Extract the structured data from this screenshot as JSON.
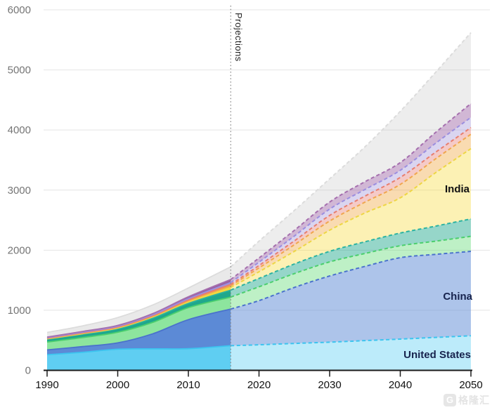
{
  "watermark": {
    "logo_letter": "G",
    "text": "格隆汇"
  },
  "chart_data": {
    "type": "area",
    "stacked": true,
    "title": "",
    "xlabel": "",
    "ylabel": "",
    "xlim": [
      1990,
      2050
    ],
    "ylim": [
      0,
      6000
    ],
    "grid": "horizontal",
    "legend_position": "none",
    "x_ticks": [
      1990,
      2000,
      2010,
      2020,
      2030,
      2040,
      2050
    ],
    "y_ticks": [
      0,
      1000,
      2000,
      3000,
      4000,
      5000,
      6000
    ],
    "projection_start": 2016,
    "projection_line_label": "Projections",
    "x": [
      1990,
      1995,
      2000,
      2005,
      2010,
      2016,
      2020,
      2025,
      2030,
      2035,
      2040,
      2045,
      2050
    ],
    "series": [
      {
        "id": "united-states",
        "label": "United States",
        "values": [
          260,
          300,
          352,
          358,
          360,
          410,
          425,
          448,
          469,
          495,
          520,
          548,
          575
        ],
        "color_hist": "#5fcef2",
        "color_proj": "rgba(95,208,244,0.42)",
        "stroke": "#3cc4ef"
      },
      {
        "id": "china",
        "label": "China",
        "values": [
          80,
          95,
          105,
          252,
          484,
          610,
          735,
          932,
          1101,
          1235,
          1355,
          1382,
          1405
        ],
        "color_hist": "#5c8ad6",
        "color_proj": "rgba(92,138,214,0.50)",
        "stroke": "#4a72cc"
      },
      {
        "id": "unlabeled-green",
        "label": "",
        "values": [
          130,
          150,
          176,
          190,
          199,
          199,
          230,
          230,
          235,
          215,
          199,
          220,
          250
        ],
        "color_hist": "#8de59e",
        "color_proj": "rgba(100,220,120,0.42)",
        "stroke": "#4ccf6e"
      },
      {
        "id": "unlabeled-teal",
        "label": "",
        "values": [
          47,
          55,
          59,
          70,
          70,
          117,
          140,
          160,
          176,
          195,
          211,
          250,
          290
        ],
        "color_hist": "#1fa88c",
        "color_proj": "rgba(31,168,140,0.47)",
        "stroke": "#2bb3a1"
      },
      {
        "id": "india",
        "label": "India",
        "values": [
          8,
          10,
          13,
          20,
          27,
          44,
          110,
          210,
          351,
          480,
          587,
          890,
          1170
        ],
        "color_hist": "#f6d93b",
        "color_proj": "rgba(246,217,59,0.38)",
        "stroke": "#eed644"
      },
      {
        "id": "unlabeled-orange",
        "label": "",
        "values": [
          6,
          8,
          10,
          13,
          18,
          28,
          65,
          110,
          153,
          180,
          222,
          230,
          240
        ],
        "color_hist": "#f1a53c",
        "color_proj": "rgba(241,165,60,0.40)",
        "stroke": "#f0a64e"
      },
      {
        "id": "unlabeled-salmon",
        "label": "",
        "values": [
          6,
          8,
          9,
          11,
          14,
          22,
          40,
          65,
          93,
          100,
          117,
          110,
          110
        ],
        "color_hist": "#e2685f",
        "color_proj": "rgba(226,104,95,0.35)",
        "stroke": "#e87e6e"
      },
      {
        "id": "unlabeled-lavender",
        "label": "",
        "values": [
          7,
          9,
          10,
          13,
          20,
          32,
          55,
          80,
          106,
          110,
          118,
          150,
          170
        ],
        "color_hist": "#a69adb",
        "color_proj": "rgba(166,154,219,0.42)",
        "stroke": "#9b8edf"
      },
      {
        "id": "unlabeled-purple",
        "label": "",
        "values": [
          9,
          12,
          14,
          19,
          33,
          50,
          70,
          95,
          117,
          130,
          129,
          180,
          230
        ],
        "color_hist": "#995fa2",
        "color_proj": "rgba(153,95,162,0.45)",
        "stroke": "#a56fae"
      },
      {
        "id": "rest-of-world-gray",
        "label": "",
        "values": [
          77,
          93,
          131,
          144,
          146,
          211,
          280,
          330,
          387,
          580,
          852,
          1000,
          1180
        ],
        "color_hist": "#e9e9e9",
        "color_proj": "rgba(190,190,190,0.28)",
        "stroke": "#dcdcdc"
      }
    ],
    "annotations": {
      "india": "India",
      "china": "China",
      "united_states": "United States"
    },
    "colors": {
      "grid": "#e4e4e4",
      "axis": "#1a1a1a",
      "y_tick_text": "#757575",
      "x_tick_text": "#111111",
      "projection_line": "#8a8a8a"
    }
  }
}
